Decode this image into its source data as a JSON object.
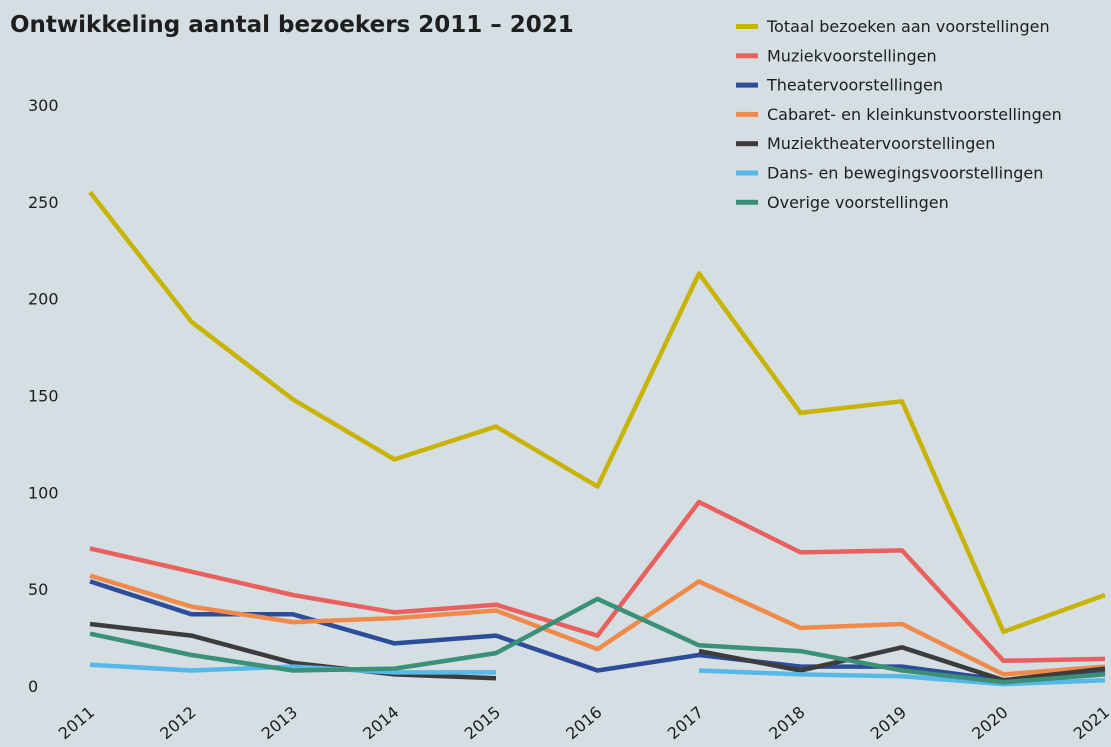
{
  "chart_data": {
    "type": "line",
    "title": "Ontwikkeling aantal bezoekers 2011 – 2021",
    "xlabel": "",
    "ylabel": "",
    "categories": [
      "2011",
      "2012",
      "2013",
      "2014",
      "2015",
      "2016",
      "2017",
      "2018",
      "2019",
      "2020",
      "2021"
    ],
    "ylim": [
      0,
      300
    ],
    "yticks": [
      "0",
      "50",
      "100",
      "150",
      "200",
      "250",
      "300"
    ],
    "grid": false,
    "legend_position": "top-right",
    "series": [
      {
        "name": "Totaal bezoeken aan voorstellingen",
        "color": "#c8b400",
        "values": [
          255,
          188,
          148,
          117,
          134,
          103,
          213,
          141,
          147,
          28,
          47
        ]
      },
      {
        "name": "Muziekvoorstellingen",
        "color": "#e8615f",
        "values": [
          71,
          59,
          47,
          38,
          42,
          26,
          95,
          69,
          70,
          13,
          14
        ]
      },
      {
        "name": "Theatervoorstellingen",
        "color": "#2d4c9a",
        "values": [
          54,
          37,
          37,
          22,
          26,
          8,
          16,
          10,
          10,
          3,
          7
        ]
      },
      {
        "name": "Cabaret- en kleinkunstvoorstellingen",
        "color": "#f08a4b",
        "values": [
          57,
          41,
          33,
          35,
          39,
          19,
          54,
          30,
          32,
          6,
          10
        ]
      },
      {
        "name": "Muziektheatervoorstellingen",
        "color": "#3c3c3c",
        "values": [
          32,
          26,
          12,
          6,
          4,
          null,
          18,
          8,
          20,
          3,
          9
        ]
      },
      {
        "name": "Dans- en bewegingsvoorstellingen",
        "color": "#55b8e8",
        "values": [
          11,
          8,
          10,
          7,
          7,
          null,
          8,
          6,
          5,
          1,
          3
        ]
      },
      {
        "name": "Overige voorstellingen",
        "color": "#3a9178",
        "values": [
          27,
          16,
          8,
          9,
          17,
          45,
          21,
          18,
          8,
          2,
          6
        ]
      }
    ]
  }
}
